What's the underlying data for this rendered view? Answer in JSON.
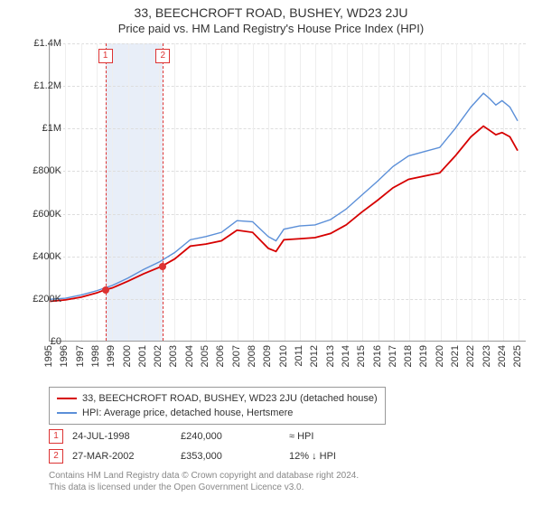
{
  "title": {
    "main": "33, BEECHCROFT ROAD, BUSHEY, WD23 2JU",
    "sub": "Price paid vs. HM Land Registry's House Price Index (HPI)"
  },
  "chart": {
    "type": "line",
    "background_color": "#ffffff",
    "grid_color": "#dddddd",
    "x_grid_color": "#eeeeee",
    "axis_color": "#999999",
    "y": {
      "min": 0,
      "max": 1400000,
      "tick_step": 200000,
      "ticks": [
        "£0",
        "£200K",
        "£400K",
        "£600K",
        "£800K",
        "£1M",
        "£1.2M",
        "£1.4M"
      ],
      "label_fontsize": 11
    },
    "x": {
      "min": 1995,
      "max": 2025.5,
      "ticks": [
        1995,
        1996,
        1997,
        1998,
        1999,
        2000,
        2001,
        2002,
        2003,
        2004,
        2005,
        2006,
        2007,
        2008,
        2009,
        2010,
        2011,
        2012,
        2013,
        2014,
        2015,
        2016,
        2017,
        2018,
        2019,
        2020,
        2021,
        2022,
        2023,
        2024,
        2025
      ],
      "label_fontsize": 11
    },
    "shaded_bands": [
      {
        "from": 1998.56,
        "to": 2002.24,
        "color": "#e8eef8"
      }
    ],
    "marker_lines": [
      {
        "x": 1998.56,
        "label": "1",
        "color": "#d33"
      },
      {
        "x": 2002.24,
        "label": "2",
        "color": "#d33"
      }
    ],
    "series": [
      {
        "name": "33, BEECHCROFT ROAD, BUSHEY, WD23 2JU (detached house)",
        "color": "#d60000",
        "line_width": 1.8,
        "points": [
          [
            1995,
            185000
          ],
          [
            1996,
            192000
          ],
          [
            1997,
            205000
          ],
          [
            1998,
            225000
          ],
          [
            1998.56,
            240000
          ],
          [
            1999,
            248000
          ],
          [
            2000,
            280000
          ],
          [
            2001,
            315000
          ],
          [
            2002,
            345000
          ],
          [
            2002.24,
            353000
          ],
          [
            2003,
            385000
          ],
          [
            2004,
            445000
          ],
          [
            2005,
            455000
          ],
          [
            2006,
            470000
          ],
          [
            2007,
            520000
          ],
          [
            2008,
            510000
          ],
          [
            2009,
            435000
          ],
          [
            2009.5,
            420000
          ],
          [
            2010,
            475000
          ],
          [
            2011,
            480000
          ],
          [
            2012,
            485000
          ],
          [
            2013,
            505000
          ],
          [
            2014,
            545000
          ],
          [
            2015,
            605000
          ],
          [
            2016,
            660000
          ],
          [
            2017,
            720000
          ],
          [
            2018,
            760000
          ],
          [
            2019,
            775000
          ],
          [
            2020,
            790000
          ],
          [
            2021,
            870000
          ],
          [
            2022,
            960000
          ],
          [
            2022.8,
            1010000
          ],
          [
            2023.2,
            990000
          ],
          [
            2023.6,
            970000
          ],
          [
            2024,
            980000
          ],
          [
            2024.5,
            960000
          ],
          [
            2025,
            895000
          ]
        ]
      },
      {
        "name": "HPI: Average price, detached house, Hertsmere",
        "color": "#5b8fd8",
        "line_width": 1.4,
        "points": [
          [
            1995,
            195000
          ],
          [
            1996,
            200000
          ],
          [
            1997,
            215000
          ],
          [
            1998,
            235000
          ],
          [
            1999,
            260000
          ],
          [
            2000,
            295000
          ],
          [
            2001,
            335000
          ],
          [
            2002,
            370000
          ],
          [
            2003,
            415000
          ],
          [
            2004,
            475000
          ],
          [
            2005,
            490000
          ],
          [
            2006,
            510000
          ],
          [
            2007,
            565000
          ],
          [
            2008,
            560000
          ],
          [
            2009,
            490000
          ],
          [
            2009.5,
            470000
          ],
          [
            2010,
            525000
          ],
          [
            2011,
            540000
          ],
          [
            2012,
            545000
          ],
          [
            2013,
            570000
          ],
          [
            2014,
            620000
          ],
          [
            2015,
            685000
          ],
          [
            2016,
            750000
          ],
          [
            2017,
            820000
          ],
          [
            2018,
            870000
          ],
          [
            2019,
            890000
          ],
          [
            2020,
            910000
          ],
          [
            2021,
            1000000
          ],
          [
            2022,
            1100000
          ],
          [
            2022.8,
            1165000
          ],
          [
            2023.2,
            1140000
          ],
          [
            2023.6,
            1110000
          ],
          [
            2024,
            1130000
          ],
          [
            2024.5,
            1100000
          ],
          [
            2025,
            1035000
          ]
        ]
      }
    ],
    "sale_points": [
      {
        "x": 1998.56,
        "y": 240000,
        "color": "#d33"
      },
      {
        "x": 2002.24,
        "y": 353000,
        "color": "#d33"
      }
    ]
  },
  "legend": {
    "items": [
      {
        "color": "#d60000",
        "label": "33, BEECHCROFT ROAD, BUSHEY, WD23 2JU (detached house)"
      },
      {
        "color": "#5b8fd8",
        "label": "HPI: Average price, detached house, Hertsmere"
      }
    ]
  },
  "transactions": [
    {
      "badge": "1",
      "date": "24-JUL-1998",
      "price": "£240,000",
      "change": "≈ HPI"
    },
    {
      "badge": "2",
      "date": "27-MAR-2002",
      "price": "£353,000",
      "change": "12% ↓ HPI"
    }
  ],
  "footnote": {
    "line1": "Contains HM Land Registry data © Crown copyright and database right 2024.",
    "line2": "This data is licensed under the Open Government Licence v3.0."
  }
}
